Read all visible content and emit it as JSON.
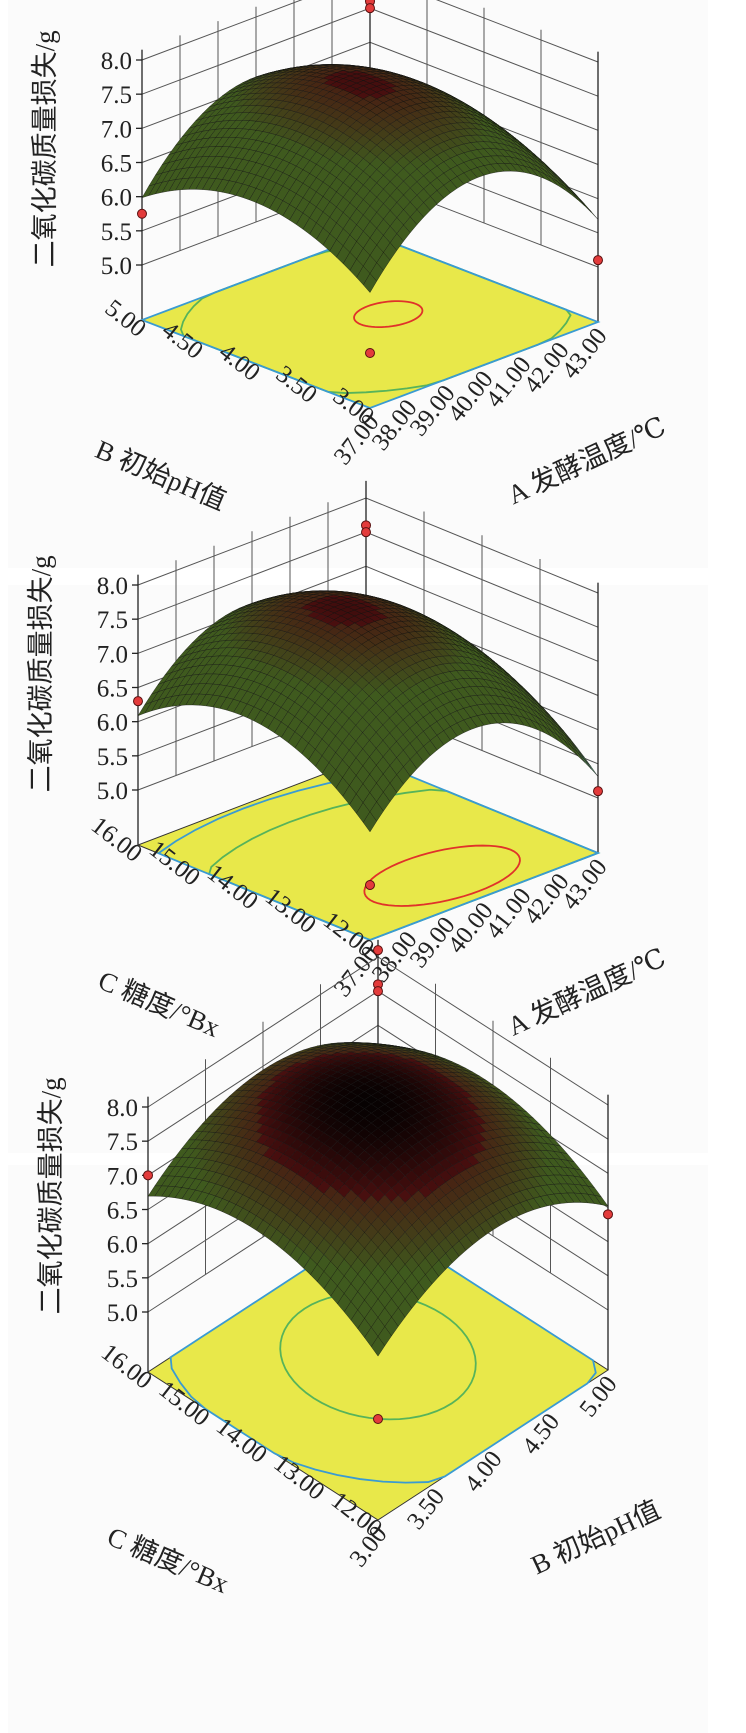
{
  "chart_data": [
    {
      "type": "surface3d",
      "zlabel": "二氧化碳质量损失/g",
      "zticks": [
        "5.0",
        "5.5",
        "6.0",
        "6.5",
        "7.0",
        "7.5",
        "8.0"
      ],
      "zlim": [
        5.0,
        8.0
      ],
      "left_axis": {
        "label": "B 初始pH值",
        "ticks": [
          "5.00",
          "4.50",
          "4.00",
          "3.50",
          "3.00"
        ],
        "range": [
          3.0,
          5.0
        ]
      },
      "right_axis": {
        "label": "A 发酵温度/℃",
        "ticks": [
          "37.00",
          "38.00",
          "39.00",
          "40.00",
          "41.00",
          "42.00",
          "43.00"
        ],
        "range": [
          37.0,
          43.0
        ]
      },
      "points": [
        {
          "description": "corner far",
          "z": 7.6
        },
        {
          "description": "corner far",
          "z": 7.5
        },
        {
          "description": "corner left",
          "z": 5.75
        },
        {
          "description": "corner right",
          "z": 5.1
        },
        {
          "description": "corner front",
          "z": 5.0
        }
      ]
    },
    {
      "type": "surface3d",
      "zlabel": "二氧化碳质量损失/g",
      "zticks": [
        "5.0",
        "5.5",
        "6.0",
        "6.5",
        "7.0",
        "7.5",
        "8.0"
      ],
      "zlim": [
        5.0,
        8.0
      ],
      "left_axis": {
        "label": "C 糖度/°Bx",
        "ticks": [
          "16.00",
          "15.00",
          "14.00",
          "13.00",
          "12.00"
        ],
        "range": [
          12.0,
          16.0
        ]
      },
      "right_axis": {
        "label": "A 发酵温度/℃",
        "ticks": [
          "37.00",
          "38.00",
          "39.00",
          "40.00",
          "41.00",
          "42.00",
          "43.00"
        ],
        "range": [
          37.0,
          43.0
        ]
      },
      "points": [
        {
          "description": "corner far",
          "z": 7.6
        },
        {
          "description": "corner far",
          "z": 7.5
        },
        {
          "description": "corner left",
          "z": 6.3
        },
        {
          "description": "corner right",
          "z": 5.1
        },
        {
          "description": "corner front",
          "z": 5.0
        }
      ]
    },
    {
      "type": "surface3d",
      "zlabel": "二氧化碳质量损失/g",
      "zticks": [
        "5.0",
        "5.5",
        "6.0",
        "6.5",
        "7.0",
        "7.5",
        "8.0"
      ],
      "zlim": [
        5.0,
        8.0
      ],
      "left_axis": {
        "label": "C 糖度/°Bx",
        "ticks": [
          "16.00",
          "15.00",
          "14.00",
          "13.00",
          "12.00"
        ],
        "range": [
          12.0,
          16.0
        ]
      },
      "right_axis": {
        "label": "B 初始pH值",
        "ticks": [
          "3.00",
          "3.50",
          "4.00",
          "4.50",
          "5.00"
        ],
        "range": [
          3.0,
          5.0
        ]
      },
      "points": [
        {
          "description": "corner far",
          "z": 8.1
        },
        {
          "description": "corner far",
          "z": 7.6
        },
        {
          "description": "corner far",
          "z": 7.5
        },
        {
          "description": "corner left",
          "z": 7.0
        },
        {
          "description": "corner right",
          "z": 6.4
        },
        {
          "description": "corner front",
          "z": 5.6
        }
      ]
    }
  ],
  "colors": {
    "floor": "#e8e84a",
    "contour_red": "#e0322a",
    "contour_green": "#57b35a",
    "contour_blue": "#3a9bd2",
    "surface_high": "#4a0f0f",
    "surface_mid": "#3f5a1e",
    "surface_low": "#6ab0c8",
    "design_point": "#e33b3b"
  }
}
